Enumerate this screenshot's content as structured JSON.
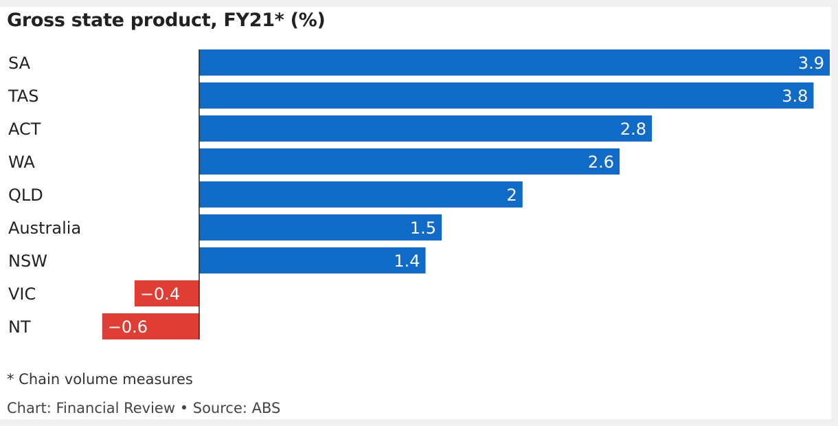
{
  "title": "Gross state product, FY21* (%)",
  "footnote": "* Chain volume measures",
  "credit": "Chart: Financial Review • Source: ABS",
  "colors": {
    "positive": "#106bc8",
    "negative": "#e03d35",
    "axis": "#222222"
  },
  "chart_data": {
    "type": "bar",
    "orientation": "horizontal",
    "title": "Gross state product, FY21* (%)",
    "categories": [
      "SA",
      "TAS",
      "ACT",
      "WA",
      "QLD",
      "Australia",
      "NSW",
      "VIC",
      "NT"
    ],
    "values": [
      3.9,
      3.8,
      2.8,
      2.6,
      2,
      1.5,
      1.4,
      -0.4,
      -0.6
    ],
    "value_labels": [
      "3.9",
      "3.8",
      "2.8",
      "2.6",
      "2",
      "1.5",
      "1.4",
      "−0.4",
      "−0.6"
    ],
    "xlim": [
      -0.6,
      3.9
    ],
    "grid": false,
    "legend": "none"
  }
}
